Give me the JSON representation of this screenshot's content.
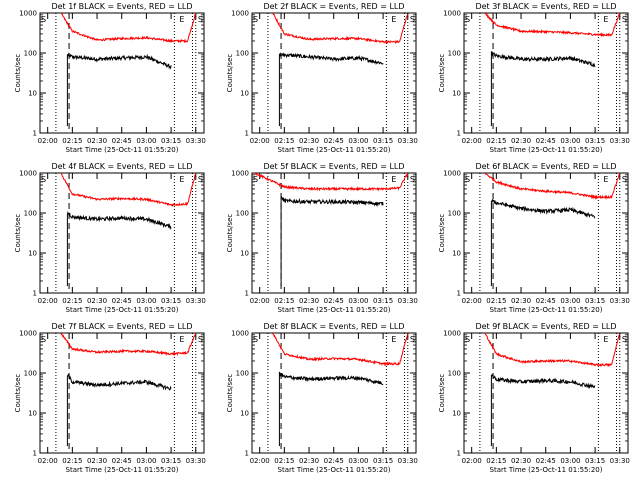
{
  "figure": {
    "xlabel": "Start Time (25-Oct-11 01:55:20)",
    "ylabel": "Counts/sec",
    "xtick_labels": [
      "02:00",
      "02:15",
      "02:30",
      "02:45",
      "03:00",
      "03:15",
      "03:30"
    ],
    "ytick_labels": [
      "1",
      "10",
      "100",
      "1000"
    ],
    "colors": {
      "events": "#000000",
      "lld": "#ff0000",
      "axes": "#000000"
    }
  },
  "chart_data": [
    {
      "type": "line",
      "title": "Det 1f BLACK = Events, RED = LLD",
      "marks": [
        "S",
        "E",
        "S"
      ],
      "xlim": [
        "01:55:20",
        "03:35"
      ],
      "ylim": [
        1,
        1000
      ],
      "yscale": "log",
      "dotted_lines": [
        "02:05",
        "03:17",
        "03:28",
        "03:30"
      ],
      "dashed_lines": [
        "02:13"
      ],
      "series": [
        {
          "name": "Events",
          "color": "#000000",
          "x": [
            "02:12",
            "02:15",
            "02:30",
            "02:45",
            "03:00",
            "03:15"
          ],
          "y": [
            90,
            80,
            70,
            75,
            80,
            45
          ]
        },
        {
          "name": "LLD",
          "color": "#ff0000",
          "x": [
            "02:08",
            "02:15",
            "02:30",
            "02:45",
            "03:00",
            "03:15",
            "03:25",
            "03:30"
          ],
          "y": [
            1000,
            350,
            210,
            230,
            240,
            200,
            200,
            1000
          ]
        }
      ]
    },
    {
      "type": "line",
      "title": "Det 2f BLACK = Events, RED = LLD",
      "marks": [
        "S",
        "E",
        "S"
      ],
      "xlim": [
        "01:55:20",
        "03:35"
      ],
      "ylim": [
        1,
        1000
      ],
      "yscale": "log",
      "dotted_lines": [
        "02:05",
        "03:17",
        "03:28",
        "03:30"
      ],
      "dashed_lines": [
        "02:13"
      ],
      "series": [
        {
          "name": "Events",
          "color": "#000000",
          "x": [
            "02:12",
            "02:15",
            "02:30",
            "02:45",
            "03:00",
            "03:15"
          ],
          "y": [
            90,
            90,
            80,
            70,
            75,
            55
          ]
        },
        {
          "name": "LLD",
          "color": "#ff0000",
          "x": [
            "02:08",
            "02:15",
            "02:30",
            "02:45",
            "03:00",
            "03:15",
            "03:25",
            "03:30"
          ],
          "y": [
            1000,
            300,
            220,
            230,
            230,
            190,
            190,
            1000
          ]
        }
      ]
    },
    {
      "type": "line",
      "title": "Det 3f BLACK = Events, RED = LLD",
      "marks": [
        "S",
        "E",
        "S"
      ],
      "xlim": [
        "01:55:20",
        "03:35"
      ],
      "ylim": [
        1,
        1000
      ],
      "yscale": "log",
      "dotted_lines": [
        "02:05",
        "03:17",
        "03:28",
        "03:30"
      ],
      "dashed_lines": [
        "02:13"
      ],
      "series": [
        {
          "name": "Events",
          "color": "#000000",
          "x": [
            "02:12",
            "02:15",
            "02:30",
            "02:45",
            "03:00",
            "03:15"
          ],
          "y": [
            100,
            85,
            70,
            70,
            75,
            50
          ]
        },
        {
          "name": "LLD",
          "color": "#ff0000",
          "x": [
            "02:08",
            "02:15",
            "02:30",
            "02:45",
            "03:00",
            "03:15",
            "03:25",
            "03:30"
          ],
          "y": [
            1000,
            500,
            350,
            340,
            320,
            290,
            280,
            1000
          ]
        }
      ]
    },
    {
      "type": "line",
      "title": "Det 4f BLACK = Events, RED = LLD",
      "marks": [
        "S",
        "E",
        "S"
      ],
      "xlim": [
        "01:55:20",
        "03:35"
      ],
      "ylim": [
        1,
        1000
      ],
      "yscale": "log",
      "dotted_lines": [
        "02:05",
        "03:17",
        "03:28",
        "03:30"
      ],
      "dashed_lines": [
        "02:13"
      ],
      "series": [
        {
          "name": "Events",
          "color": "#000000",
          "x": [
            "02:12",
            "02:15",
            "02:30",
            "02:45",
            "03:00",
            "03:15"
          ],
          "y": [
            100,
            80,
            70,
            75,
            70,
            45
          ]
        },
        {
          "name": "LLD",
          "color": "#ff0000",
          "x": [
            "02:08",
            "02:15",
            "02:30",
            "02:45",
            "03:00",
            "03:15",
            "03:25",
            "03:30"
          ],
          "y": [
            1000,
            300,
            220,
            230,
            220,
            160,
            170,
            1000
          ]
        }
      ]
    },
    {
      "type": "line",
      "title": "Det 5f BLACK = Events, RED = LLD",
      "marks": [
        "S",
        "E",
        "S"
      ],
      "xlim": [
        "01:55:20",
        "03:35"
      ],
      "ylim": [
        1,
        1000
      ],
      "yscale": "log",
      "dotted_lines": [
        "02:05",
        "03:17",
        "03:28",
        "03:30"
      ],
      "dashed_lines": [
        "02:13"
      ],
      "series": [
        {
          "name": "Events",
          "color": "#000000",
          "x": [
            "02:13",
            "02:15",
            "02:30",
            "02:45",
            "03:00",
            "03:15"
          ],
          "y": [
            250,
            200,
            190,
            190,
            185,
            170
          ]
        },
        {
          "name": "LLD",
          "color": "#ff0000",
          "x": [
            "01:57",
            "02:05",
            "02:15",
            "02:30",
            "02:45",
            "03:00",
            "03:15",
            "03:25",
            "03:30"
          ],
          "y": [
            1000,
            700,
            450,
            400,
            400,
            400,
            400,
            420,
            1000
          ]
        }
      ]
    },
    {
      "type": "line",
      "title": "Det 6f BLACK = Events, RED = LLD",
      "marks": [
        "S",
        "E",
        "S"
      ],
      "xlim": [
        "01:55:20",
        "03:35"
      ],
      "ylim": [
        1,
        1000
      ],
      "yscale": "log",
      "dotted_lines": [
        "02:05",
        "03:17",
        "03:28",
        "03:30"
      ],
      "dashed_lines": [
        "02:13"
      ],
      "series": [
        {
          "name": "Events",
          "color": "#000000",
          "x": [
            "02:12",
            "02:15",
            "02:30",
            "02:45",
            "03:00",
            "03:15"
          ],
          "y": [
            200,
            180,
            130,
            110,
            120,
            80
          ]
        },
        {
          "name": "LLD",
          "color": "#ff0000",
          "x": [
            "02:08",
            "02:15",
            "02:30",
            "02:45",
            "03:00",
            "03:15",
            "03:25",
            "03:30"
          ],
          "y": [
            1000,
            600,
            400,
            350,
            320,
            250,
            250,
            1000
          ]
        }
      ]
    },
    {
      "type": "line",
      "title": "Det 7f BLACK = Events, RED = LLD",
      "marks": [
        "S",
        "E",
        "S"
      ],
      "xlim": [
        "01:55:20",
        "03:35"
      ],
      "ylim": [
        1,
        1000
      ],
      "yscale": "log",
      "dotted_lines": [
        "02:05",
        "03:17",
        "03:28",
        "03:30"
      ],
      "dashed_lines": [
        "02:13"
      ],
      "series": [
        {
          "name": "Events",
          "color": "#000000",
          "x": [
            "02:12",
            "02:15",
            "02:30",
            "02:45",
            "03:00",
            "03:15"
          ],
          "y": [
            90,
            60,
            50,
            55,
            60,
            40
          ]
        },
        {
          "name": "LLD",
          "color": "#ff0000",
          "x": [
            "02:08",
            "02:15",
            "02:30",
            "02:45",
            "03:00",
            "03:15",
            "03:25",
            "03:30"
          ],
          "y": [
            1000,
            400,
            330,
            350,
            350,
            300,
            320,
            1000
          ]
        }
      ]
    },
    {
      "type": "line",
      "title": "Det 8f BLACK = Events, RED = LLD",
      "marks": [
        "S",
        "E",
        "S"
      ],
      "xlim": [
        "01:55:20",
        "03:35"
      ],
      "ylim": [
        1,
        1000
      ],
      "yscale": "log",
      "dotted_lines": [
        "02:05",
        "03:17",
        "03:28",
        "03:30"
      ],
      "dashed_lines": [
        "02:13"
      ],
      "series": [
        {
          "name": "Events",
          "color": "#000000",
          "x": [
            "02:12",
            "02:15",
            "02:30",
            "02:45",
            "03:00",
            "03:15"
          ],
          "y": [
            100,
            80,
            70,
            75,
            75,
            55
          ]
        },
        {
          "name": "LLD",
          "color": "#ff0000",
          "x": [
            "02:08",
            "02:15",
            "02:30",
            "02:45",
            "03:00",
            "03:15",
            "03:25",
            "03:30"
          ],
          "y": [
            1000,
            300,
            220,
            230,
            220,
            170,
            170,
            1000
          ]
        }
      ]
    },
    {
      "type": "line",
      "title": "Det 9f BLACK = Events, RED = LLD",
      "marks": [
        "S",
        "E",
        "S"
      ],
      "xlim": [
        "01:55:20",
        "03:35"
      ],
      "ylim": [
        1,
        1000
      ],
      "yscale": "log",
      "dotted_lines": [
        "02:05",
        "03:17",
        "03:28",
        "03:30"
      ],
      "dashed_lines": [
        "02:13"
      ],
      "series": [
        {
          "name": "Events",
          "color": "#000000",
          "x": [
            "02:12",
            "02:15",
            "02:30",
            "02:45",
            "03:00",
            "03:15"
          ],
          "y": [
            90,
            70,
            60,
            65,
            60,
            45
          ]
        },
        {
          "name": "LLD",
          "color": "#ff0000",
          "x": [
            "02:08",
            "02:15",
            "02:30",
            "02:45",
            "03:00",
            "03:15",
            "03:25",
            "03:30"
          ],
          "y": [
            1000,
            300,
            190,
            200,
            200,
            160,
            160,
            1000
          ]
        }
      ]
    }
  ]
}
